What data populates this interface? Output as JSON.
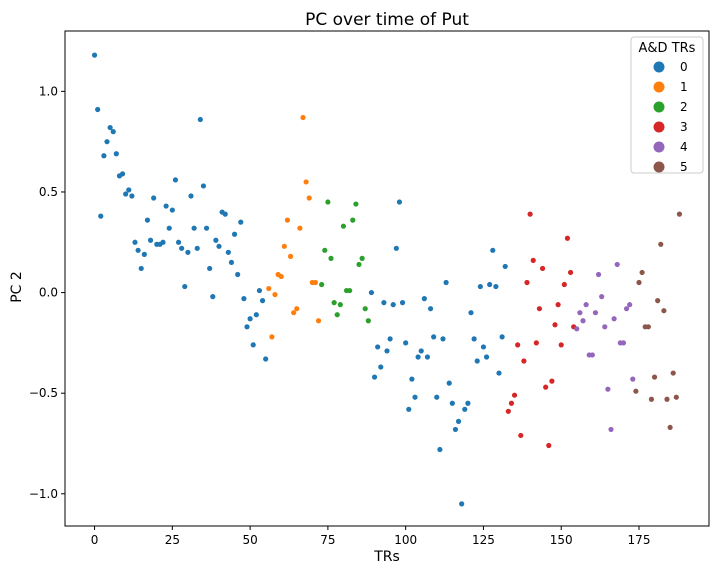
{
  "chart_data": {
    "type": "scatter",
    "title": "PC over time of Put",
    "xlabel": "TRs",
    "ylabel": "PC 2",
    "xlim": [
      -9.5,
      197.5
    ],
    "ylim": [
      -1.16,
      1.3
    ],
    "xticks": [
      0,
      25,
      50,
      75,
      100,
      125,
      150,
      175
    ],
    "yticks": [
      -1.0,
      -0.5,
      0.0,
      0.5,
      1.0
    ],
    "ytick_labels": [
      "−1.0",
      "−0.5",
      "0.0",
      "0.5",
      "1.0"
    ],
    "grid": false,
    "legend": {
      "title": "A&D TRs",
      "position": "top-right"
    },
    "series": [
      {
        "name": "0",
        "color": "#1f77b4",
        "x": [
          0,
          1,
          2,
          3,
          4,
          5,
          6,
          7,
          8,
          9,
          10,
          11,
          12,
          13,
          14,
          15,
          16,
          17,
          18,
          19,
          20,
          21,
          22,
          23,
          24,
          25,
          26,
          27,
          28,
          29,
          30,
          31,
          32,
          33,
          34,
          35,
          36,
          37,
          38,
          39,
          40,
          41,
          42,
          43,
          44,
          45,
          46,
          47,
          48,
          49,
          50,
          51,
          52,
          53,
          54,
          55,
          89,
          90,
          91,
          92,
          93,
          94,
          95,
          96,
          97,
          98,
          99,
          100,
          101,
          102,
          103,
          104,
          105,
          106,
          107,
          108,
          109,
          110,
          111,
          112,
          113,
          114,
          115,
          116,
          117,
          118,
          119,
          120,
          121,
          122,
          123,
          124,
          125,
          126,
          127,
          128,
          129,
          130,
          131,
          132
        ],
        "y": [
          1.18,
          0.91,
          0.38,
          0.68,
          0.75,
          0.82,
          0.8,
          0.69,
          0.58,
          0.59,
          0.49,
          0.51,
          0.48,
          0.25,
          0.21,
          0.12,
          0.19,
          0.36,
          0.26,
          0.47,
          0.24,
          0.24,
          0.25,
          0.43,
          0.32,
          0.41,
          0.56,
          0.25,
          0.22,
          0.03,
          0.2,
          0.48,
          0.32,
          0.22,
          0.86,
          0.53,
          0.32,
          0.12,
          -0.02,
          0.26,
          0.23,
          0.4,
          0.39,
          0.2,
          0.15,
          0.29,
          0.09,
          0.35,
          -0.03,
          -0.17,
          -0.13,
          -0.26,
          -0.11,
          0.01,
          -0.04,
          -0.33,
          0.0,
          -0.42,
          -0.27,
          -0.37,
          -0.05,
          -0.29,
          -0.23,
          -0.06,
          0.22,
          0.45,
          -0.05,
          -0.25,
          -0.58,
          -0.43,
          -0.52,
          -0.32,
          -0.29,
          -0.03,
          -0.32,
          -0.08,
          -0.22,
          -0.52,
          -0.78,
          -0.23,
          0.05,
          -0.45,
          -0.55,
          -0.68,
          -0.64,
          -1.05,
          -0.58,
          -0.55,
          -0.1,
          -0.23,
          -0.34,
          0.03,
          -0.27,
          -0.32,
          0.04,
          0.21,
          0.03,
          -0.4,
          -0.22,
          0.13
        ]
      },
      {
        "name": "1",
        "color": "#ff7f0e",
        "x": [
          56,
          57,
          58,
          59,
          60,
          61,
          62,
          63,
          64,
          65,
          66,
          67,
          68,
          69,
          70,
          71,
          72
        ],
        "y": [
          0.02,
          -0.22,
          -0.01,
          0.09,
          0.08,
          0.23,
          0.36,
          0.18,
          -0.1,
          -0.08,
          0.32,
          0.87,
          0.55,
          0.47,
          0.05,
          0.05,
          -0.14
        ]
      },
      {
        "name": "2",
        "color": "#2ca02c",
        "x": [
          73,
          74,
          75,
          76,
          77,
          78,
          79,
          80,
          81,
          82,
          83,
          84,
          85,
          86,
          87,
          88
        ],
        "y": [
          0.04,
          0.21,
          0.45,
          0.17,
          -0.05,
          -0.11,
          -0.06,
          0.33,
          0.01,
          0.01,
          0.36,
          0.44,
          0.14,
          0.17,
          -0.08,
          -0.14
        ]
      },
      {
        "name": "3",
        "color": "#d62728",
        "x": [
          133,
          134,
          135,
          136,
          137,
          138,
          139,
          140,
          141,
          142,
          143,
          144,
          145,
          146,
          147,
          148,
          149,
          150,
          151,
          152,
          153,
          154
        ],
        "y": [
          -0.59,
          -0.55,
          -0.51,
          -0.26,
          -0.71,
          -0.34,
          0.05,
          0.39,
          0.16,
          -0.25,
          -0.08,
          0.12,
          -0.47,
          -0.76,
          -0.44,
          -0.16,
          -0.06,
          -0.26,
          0.04,
          0.27,
          0.1,
          -0.17
        ]
      },
      {
        "name": "4",
        "color": "#9467bd",
        "x": [
          155,
          156,
          157,
          158,
          159,
          160,
          161,
          162,
          163,
          164,
          165,
          166,
          167,
          168,
          169,
          170,
          171,
          172,
          173
        ],
        "y": [
          -0.18,
          -0.1,
          -0.14,
          -0.06,
          -0.31,
          -0.31,
          -0.1,
          0.09,
          -0.02,
          -0.17,
          -0.48,
          -0.68,
          -0.13,
          0.14,
          -0.25,
          -0.25,
          -0.08,
          -0.06,
          -0.43
        ]
      },
      {
        "name": "5",
        "color": "#8c564b",
        "x": [
          174,
          175,
          176,
          177,
          178,
          179,
          180,
          181,
          182,
          183,
          184,
          185,
          186,
          187,
          188
        ],
        "y": [
          -0.49,
          0.05,
          0.1,
          -0.17,
          -0.17,
          -0.53,
          -0.42,
          -0.04,
          0.24,
          -0.09,
          -0.53,
          -0.67,
          -0.4,
          -0.52,
          0.39
        ]
      }
    ]
  }
}
